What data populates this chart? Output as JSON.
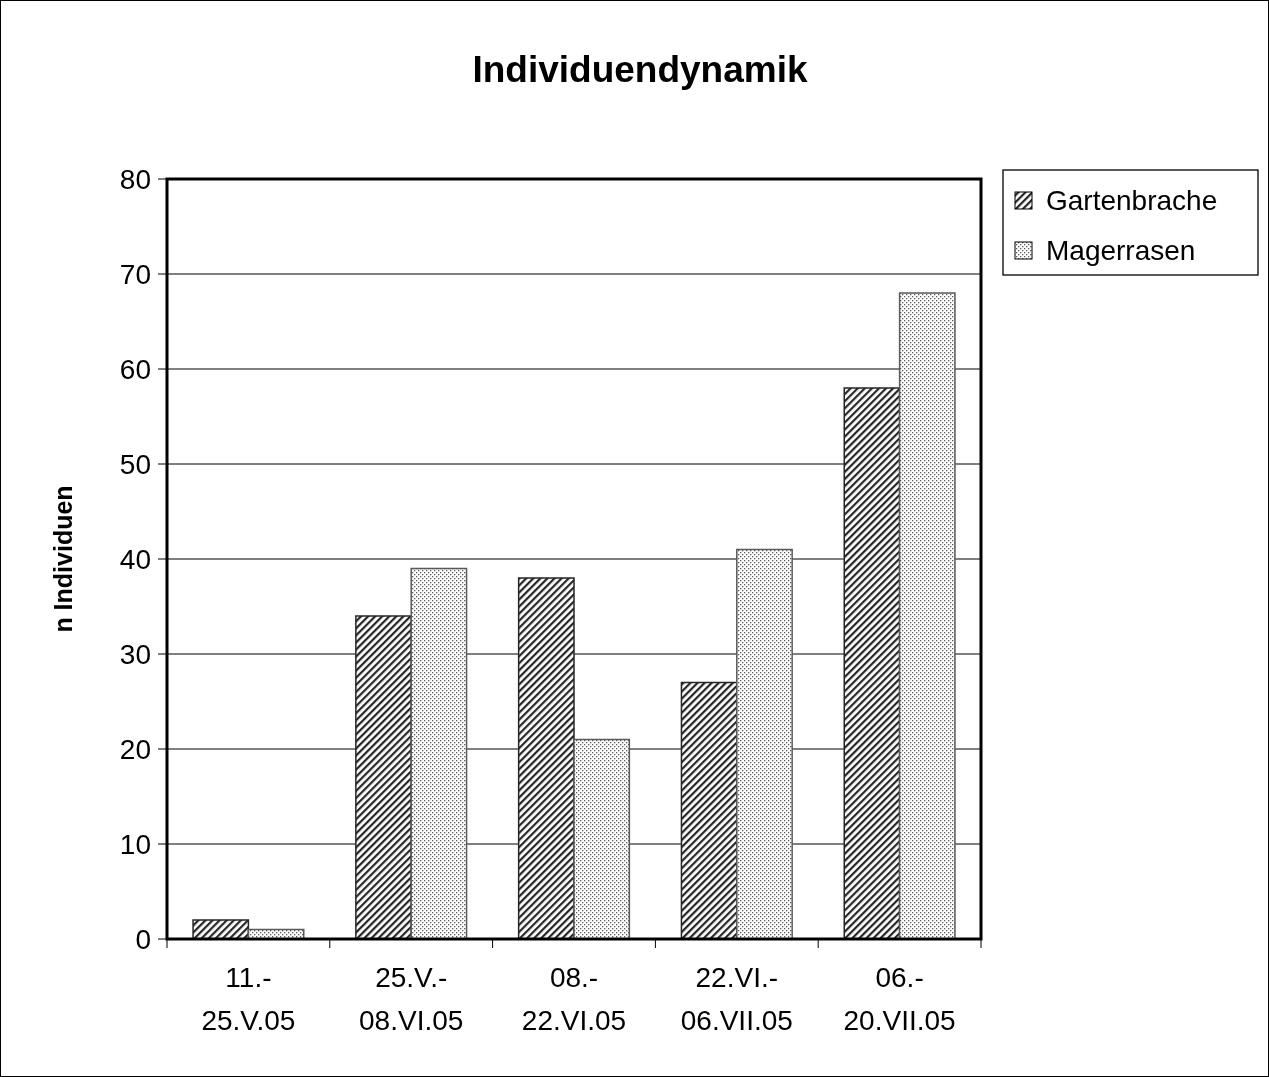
{
  "chart_data": {
    "type": "bar",
    "title": "Individuendynamik",
    "ylabel": "n Individuen",
    "categories": [
      "11.-\n25.V.05",
      "25.V.-\n08.VI.05",
      "08.-\n22.VI.05",
      "22.VI.-\n06.VII.05",
      "06.-\n20.VII.05"
    ],
    "series": [
      {
        "name": "Gartenbrache",
        "color": "#262626",
        "values": [
          2,
          34,
          38,
          27,
          58
        ]
      },
      {
        "name": "Magerrasen",
        "color": "#5a5a5a",
        "values": [
          1,
          39,
          21,
          41,
          68
        ]
      }
    ],
    "ylim": [
      0,
      80
    ],
    "yticks": [
      0,
      10,
      20,
      30,
      40,
      50,
      60,
      70,
      80
    ],
    "grid": "y",
    "legend": "top right"
  }
}
